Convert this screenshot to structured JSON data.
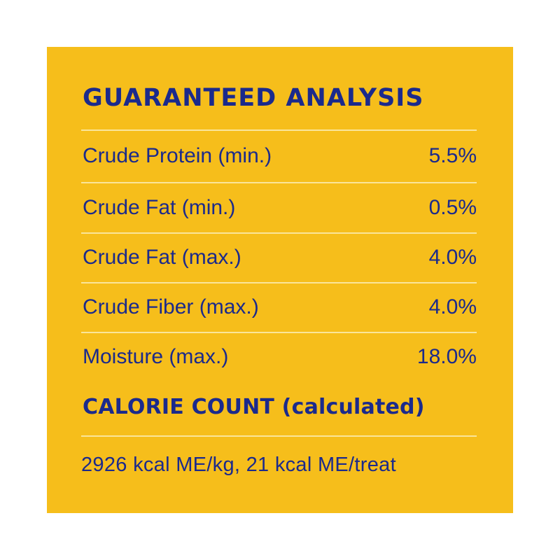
{
  "panel": {
    "background_color": "#F6BE1B",
    "text_color": "#1B2A8C",
    "rule_color": "#FAE59A"
  },
  "analysis": {
    "title": "GUARANTEED ANALYSIS",
    "rows": [
      {
        "label": "Crude Protein (min.)",
        "value": "5.5%"
      },
      {
        "label": "Crude Fat (min.)",
        "value": "0.5%"
      },
      {
        "label": "Crude Fat (max.)",
        "value": "4.0%"
      },
      {
        "label": "Crude Fiber (max.)",
        "value": "4.0%"
      },
      {
        "label": "Moisture (max.)",
        "value": "18.0%"
      }
    ]
  },
  "calorie": {
    "title": "CALORIE COUNT (calculated)",
    "text": "2926 kcal ME/kg, 21 kcal ME/treat"
  }
}
